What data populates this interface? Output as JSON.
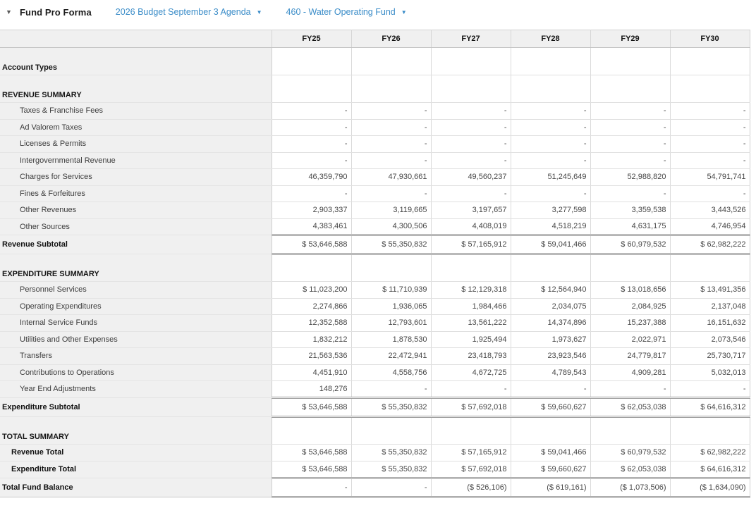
{
  "colors": {
    "link_blue": "#3a8cc8",
    "label_bg": "#f0f0f0",
    "grid_line": "#dadada",
    "double_line": "#9c9c9c"
  },
  "header": {
    "collapse_icon": "collapse-triangle",
    "title": "Fund Pro Forma",
    "budget_dropdown": "2026 Budget September 3 Agenda",
    "fund_dropdown": "460 - Water Operating Fund",
    "caret_icon": "▼"
  },
  "table": {
    "columns": [
      "FY25",
      "FY26",
      "FY27",
      "FY28",
      "FY29",
      "FY30"
    ],
    "rows": [
      {
        "type": "section",
        "label": "Account Types",
        "values": [
          "",
          "",
          "",
          "",
          "",
          ""
        ]
      },
      {
        "type": "section",
        "label": "REVENUE SUMMARY",
        "values": [
          "",
          "",
          "",
          "",
          "",
          ""
        ]
      },
      {
        "type": "item",
        "label": "Taxes & Franchise Fees",
        "values": [
          "-",
          "-",
          "-",
          "-",
          "-",
          "-"
        ]
      },
      {
        "type": "item",
        "label": "Ad Valorem Taxes",
        "values": [
          "-",
          "-",
          "-",
          "-",
          "-",
          "-"
        ]
      },
      {
        "type": "item",
        "label": "Licenses & Permits",
        "values": [
          "-",
          "-",
          "-",
          "-",
          "-",
          "-"
        ]
      },
      {
        "type": "item",
        "label": "Intergovernmental Revenue",
        "values": [
          "-",
          "-",
          "-",
          "-",
          "-",
          "-"
        ]
      },
      {
        "type": "item",
        "label": "Charges for Services",
        "values": [
          "46,359,790",
          "47,930,661",
          "49,560,237",
          "51,245,649",
          "52,988,820",
          "54,791,741"
        ]
      },
      {
        "type": "item",
        "label": "Fines & Forfeitures",
        "values": [
          "-",
          "-",
          "-",
          "-",
          "-",
          "-"
        ]
      },
      {
        "type": "item",
        "label": "Other Revenues",
        "values": [
          "2,903,337",
          "3,119,665",
          "3,197,657",
          "3,277,598",
          "3,359,538",
          "3,443,526"
        ]
      },
      {
        "type": "item",
        "label": "Other Sources",
        "values": [
          "4,383,461",
          "4,300,506",
          "4,408,019",
          "4,518,219",
          "4,631,175",
          "4,746,954"
        ]
      },
      {
        "type": "subtotal",
        "label": "Revenue Subtotal",
        "values": [
          "$ 53,646,588",
          "$ 55,350,832",
          "$ 57,165,912",
          "$ 59,041,466",
          "$ 60,979,532",
          "$ 62,982,222"
        ]
      },
      {
        "type": "section",
        "label": "EXPENDITURE SUMMARY",
        "values": [
          "",
          "",
          "",
          "",
          "",
          ""
        ]
      },
      {
        "type": "item",
        "label": "Personnel Services",
        "values": [
          "$ 11,023,200",
          "$ 11,710,939",
          "$ 12,129,318",
          "$ 12,564,940",
          "$ 13,018,656",
          "$ 13,491,356"
        ]
      },
      {
        "type": "item",
        "label": "Operating Expenditures",
        "values": [
          "2,274,866",
          "1,936,065",
          "1,984,466",
          "2,034,075",
          "2,084,925",
          "2,137,048"
        ]
      },
      {
        "type": "item",
        "label": "Internal Service Funds",
        "values": [
          "12,352,588",
          "12,793,601",
          "13,561,222",
          "14,374,896",
          "15,237,388",
          "16,151,632"
        ]
      },
      {
        "type": "item",
        "label": "Utilities and Other Expenses",
        "values": [
          "1,832,212",
          "1,878,530",
          "1,925,494",
          "1,973,627",
          "2,022,971",
          "2,073,546"
        ]
      },
      {
        "type": "item",
        "label": "Transfers",
        "values": [
          "21,563,536",
          "22,472,941",
          "23,418,793",
          "23,923,546",
          "24,779,817",
          "25,730,717"
        ]
      },
      {
        "type": "item",
        "label": "Contributions to Operations",
        "values": [
          "4,451,910",
          "4,558,756",
          "4,672,725",
          "4,789,543",
          "4,909,281",
          "5,032,013"
        ]
      },
      {
        "type": "item",
        "label": "Year End Adjustments",
        "values": [
          "148,276",
          "-",
          "-",
          "-",
          "-",
          "-"
        ]
      },
      {
        "type": "subtotal",
        "label": "Expenditure Subtotal",
        "values": [
          "$ 53,646,588",
          "$ 55,350,832",
          "$ 57,692,018",
          "$ 59,660,627",
          "$ 62,053,038",
          "$ 64,616,312"
        ]
      },
      {
        "type": "section",
        "label": "TOTAL SUMMARY",
        "values": [
          "",
          "",
          "",
          "",
          "",
          ""
        ]
      },
      {
        "type": "total",
        "label": "Revenue Total",
        "values": [
          "$ 53,646,588",
          "$ 55,350,832",
          "$ 57,165,912",
          "$ 59,041,466",
          "$ 60,979,532",
          "$ 62,982,222"
        ]
      },
      {
        "type": "total_last",
        "label": "Expenditure Total",
        "values": [
          "$ 53,646,588",
          "$ 55,350,832",
          "$ 57,692,018",
          "$ 59,660,627",
          "$ 62,053,038",
          "$ 64,616,312"
        ]
      },
      {
        "type": "grand",
        "label": "Total Fund Balance",
        "values": [
          "-",
          "-",
          "($ 526,106)",
          "($ 619,161)",
          "($ 1,073,506)",
          "($ 1,634,090)"
        ]
      }
    ]
  }
}
